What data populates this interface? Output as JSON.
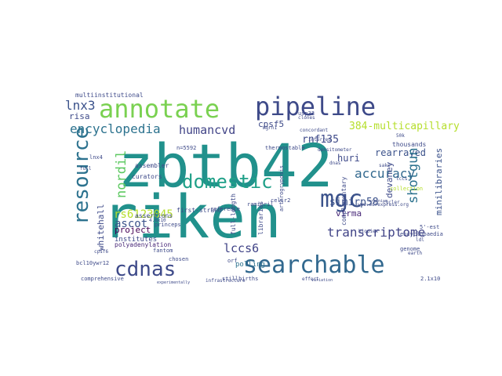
{
  "words": [
    {
      "text": "zbtb42",
      "color": "#21918c"
    },
    {
      "text": "riken",
      "color": "#21918c"
    },
    {
      "text": "annotate",
      "color": "#7ad151"
    },
    {
      "text": "pipeline",
      "color": "#3e4a89"
    },
    {
      "text": "resource",
      "color": "#2c728e"
    },
    {
      "text": "domestic",
      "color": "#1fa088"
    },
    {
      "text": "mgc",
      "color": "#3b528b"
    },
    {
      "text": "searchable",
      "color": "#31688e"
    },
    {
      "text": "cdnas",
      "color": "#3e4a89"
    },
    {
      "text": "lnx3",
      "color": "#3b528b"
    },
    {
      "text": "encyclopedia",
      "color": "#2c728e"
    },
    {
      "text": "humancvd",
      "color": "#414487"
    },
    {
      "text": "cpsf5",
      "color": "#3e4a89"
    },
    {
      "text": "384-multicapillary",
      "color": "#b5de2b"
    },
    {
      "text": "rnf135",
      "color": "#3e4a89"
    },
    {
      "text": "rearrayed",
      "color": "#3b528b"
    },
    {
      "text": "huri",
      "color": "#3e4a89"
    },
    {
      "text": "shotgun",
      "color": "#2c728e"
    },
    {
      "text": "nordil",
      "color": "#5ec962"
    },
    {
      "text": "accuracy",
      "color": "#31688e"
    },
    {
      "text": "rs6123045",
      "color": "#b5de2b"
    },
    {
      "text": "ascot",
      "color": "#3b528b"
    },
    {
      "text": "simirp58",
      "color": "#3b528b"
    },
    {
      "text": "transcriptome",
      "color": "#414487"
    },
    {
      "text": "minilibraries",
      "color": "#3b528b"
    },
    {
      "text": "devaney",
      "color": "#3e4a89"
    },
    {
      "text": "whitehall",
      "color": "#3e4a89"
    },
    {
      "text": "project",
      "color": "#440154"
    },
    {
      "text": "virma",
      "color": "#482878"
    },
    {
      "text": "lccs6",
      "color": "#414487"
    },
    {
      "text": "risa",
      "color": "#3e4a89"
    },
    {
      "text": "institutes",
      "color": "#3e4a89"
    },
    {
      "text": "polyadenylation",
      "color": "#482878"
    },
    {
      "text": "assertions",
      "color": "#3e4a89"
    },
    {
      "text": "first-strand",
      "color": "#3e4a89"
    },
    {
      "text": "full-length",
      "color": "#3e4a89"
    },
    {
      "text": "libraries",
      "color": "#3e4a89"
    },
    {
      "text": "curators",
      "color": "#3e4a89"
    },
    {
      "text": "assembler",
      "color": "#3e4a89"
    },
    {
      "text": "multiinstitutional",
      "color": "#3e4a89"
    },
    {
      "text": "comprehensive",
      "color": "#3e4a89"
    },
    {
      "text": "thousands",
      "color": "#3e4a89"
    },
    {
      "text": "polling",
      "color": "#2c728e"
    },
    {
      "text": "complementary",
      "color": "#3e4a89"
    },
    {
      "text": "stillbirths",
      "color": "#3e4a89"
    },
    {
      "text": "thermostable",
      "color": "#3e4a89"
    },
    {
      "text": "concordant",
      "color": "#3e4a89"
    },
    {
      "text": "densitometer",
      "color": "#3e4a89"
    },
    {
      "text": "collection",
      "color": "#b5de2b"
    },
    {
      "text": "genome",
      "color": "#3e4a89"
    },
    {
      "text": "ramipril",
      "color": "#3e4a89"
    },
    {
      "text": "fantom",
      "color": "#3e4a89"
    },
    {
      "text": "chosen",
      "color": "#3e4a89"
    },
    {
      "text": "reference",
      "color": "#3e4a89"
    },
    {
      "text": "princeps",
      "color": "#3e4a89"
    },
    {
      "text": "lnx4",
      "color": "#3e4a89"
    },
    {
      "text": "usp33",
      "color": "#3e4a89"
    },
    {
      "text": "clones",
      "color": "#3e4a89"
    },
    {
      "text": "n=5592",
      "color": "#3e4a89"
    },
    {
      "text": "celsr2",
      "color": "#3e4a89"
    },
    {
      "text": "www.eurexpress.org",
      "color": "#3e4a89"
    },
    {
      "text": "bcl10ywr12",
      "color": "#3e4a89"
    },
    {
      "text": "4.6x10",
      "color": "#3e4a89"
    },
    {
      "text": "encyclopaedia",
      "color": "#3e4a89"
    },
    {
      "text": "5'-est",
      "color": "#3e4a89"
    },
    {
      "text": "sake",
      "color": "#3e4a89"
    },
    {
      "text": "cycler",
      "color": "#3e4a89"
    },
    {
      "text": "orf",
      "color": "#3e4a89"
    },
    {
      "text": "effort",
      "color": "#3e4a89"
    },
    {
      "text": "interred",
      "color": "#3e4a89"
    },
    {
      "text": "organism",
      "color": "#3e4a89"
    },
    {
      "text": "dnas",
      "color": "#3e4a89"
    },
    {
      "text": "50k",
      "color": "#3e4a89"
    },
    {
      "text": "mgrn1",
      "color": "#3e4a89"
    },
    {
      "text": "arthrogryposis",
      "color": "#3e4a89"
    },
    {
      "text": "biopiex",
      "color": "#3e4a89"
    },
    {
      "text": "earth",
      "color": "#3e4a89"
    },
    {
      "text": "ldl",
      "color": "#3e4a89"
    },
    {
      "text": "2.1x10",
      "color": "#3e4a89"
    },
    {
      "text": "cpsf6",
      "color": "#3e4a89"
    },
    {
      "text": "lccs",
      "color": "#3e4a89"
    },
    {
      "text": "full",
      "color": "#3e4a89"
    },
    {
      "text": "variation",
      "color": "#3e4a89"
    },
    {
      "text": "experimentally",
      "color": "#3e4a89"
    },
    {
      "text": "infrastructure",
      "color": "#3e4a89"
    }
  ]
}
